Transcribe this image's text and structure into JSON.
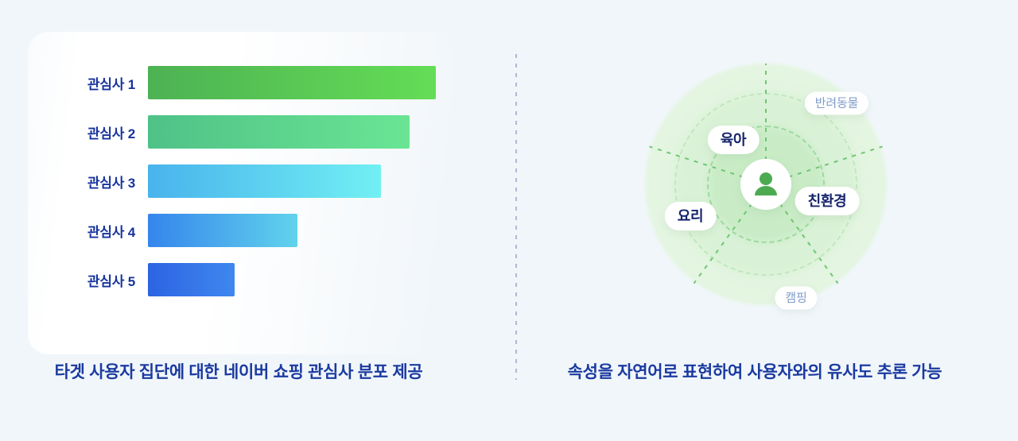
{
  "colors": {
    "background": "#f1f6fa",
    "caption_text": "#1a3aa0",
    "bar_label_text": "#17339c",
    "divider": "#aab9d6",
    "ring_inner": "#c9ecc6",
    "ring_mid": "#d9f1d6",
    "ring_outer": "#e4f5e1",
    "spoke_green": "#6fc673",
    "avatar_green": "#4cab51",
    "tag_strong_text": "#15246b",
    "tag_muted_text": "#7f9cca"
  },
  "left_panel": {
    "caption": "타겟 사용자 집단에 대한 네이버 쇼핑 관심사 분포 제공"
  },
  "right_panel": {
    "caption": "속성을 자연어로 표현하여 사용자와의 유사도 추론 가능",
    "center_icon": "person-icon",
    "tags": [
      {
        "label": "반려동물",
        "emphasis": "muted"
      },
      {
        "label": "육아",
        "emphasis": "strong"
      },
      {
        "label": "친환경",
        "emphasis": "strong"
      },
      {
        "label": "요리",
        "emphasis": "strong"
      },
      {
        "label": "캠핑",
        "emphasis": "muted"
      }
    ]
  },
  "chart_data": {
    "type": "bar",
    "orientation": "horizontal",
    "title": "타겟 사용자 집단에 대한 네이버 쇼핑 관심사 분포 제공",
    "categories": [
      "관심사 1",
      "관심사 2",
      "관심사 3",
      "관심사 4",
      "관심사 5"
    ],
    "values": [
      100,
      91,
      81,
      52,
      30
    ],
    "value_unit": "relative_percent_estimated",
    "xlabel": "",
    "ylabel": "",
    "axis_ticks_visible": false,
    "grid": false,
    "legend": false,
    "bar_colors": [
      {
        "start": "#4db253",
        "end": "#64dd56"
      },
      {
        "start": "#4fc287",
        "end": "#6ae594"
      },
      {
        "start": "#49b3ec",
        "end": "#71f0f3"
      },
      {
        "start": "#3585ec",
        "end": "#61d3ec"
      },
      {
        "start": "#2c64e2",
        "end": "#3f87ef"
      }
    ]
  }
}
